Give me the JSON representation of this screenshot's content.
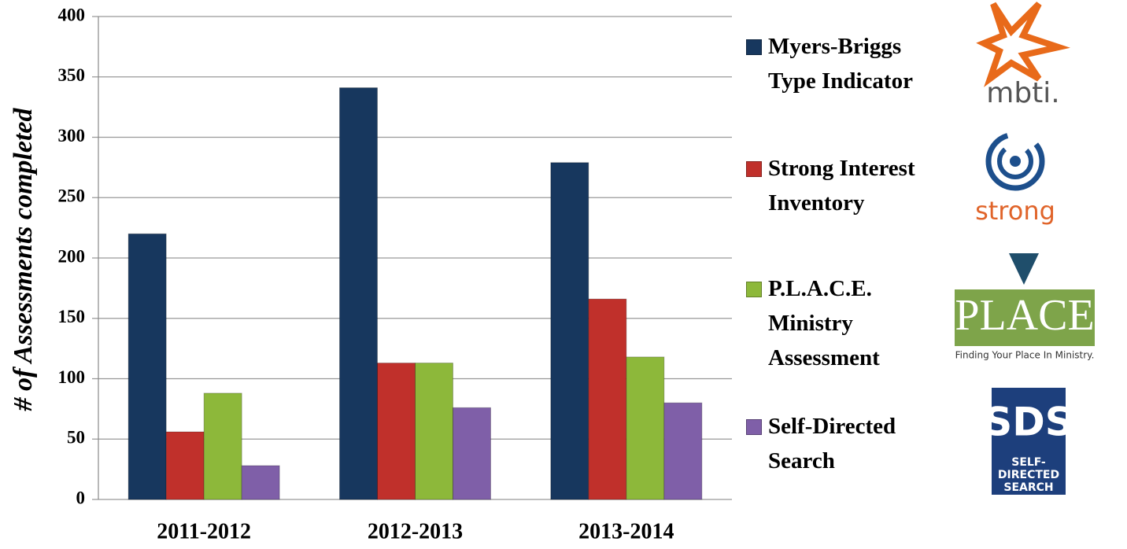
{
  "chart_data": {
    "type": "bar",
    "y_label": "# of Assessments completed",
    "categories": [
      "2011-2012",
      "2012-2013",
      "2013-2014"
    ],
    "series": [
      {
        "name": "Myers-Briggs Type Indicator",
        "color": "#17375e",
        "values": [
          220,
          341,
          279
        ]
      },
      {
        "name": "Strong Interest Inventory",
        "color": "#c0302b",
        "values": [
          56,
          113,
          166
        ]
      },
      {
        "name": "P.L.A.C.E. Ministry Assessment",
        "color": "#8db83a",
        "values": [
          88,
          113,
          118
        ]
      },
      {
        "name": "Self-Directed Search",
        "color": "#7f5fa8",
        "values": [
          28,
          76,
          80
        ]
      }
    ],
    "ylim": [
      0,
      400
    ],
    "yticks": [
      0,
      50,
      100,
      150,
      200,
      250,
      300,
      350,
      400
    ],
    "grid": true,
    "legend": "right"
  },
  "logos": {
    "mbti": "mbti.",
    "strong": "strong",
    "place": "PLACE",
    "place_tagline": "Finding Your Place In Ministry.",
    "sds": "SDS",
    "sds_sub": "SELF-DIRECTED SEARCH"
  }
}
